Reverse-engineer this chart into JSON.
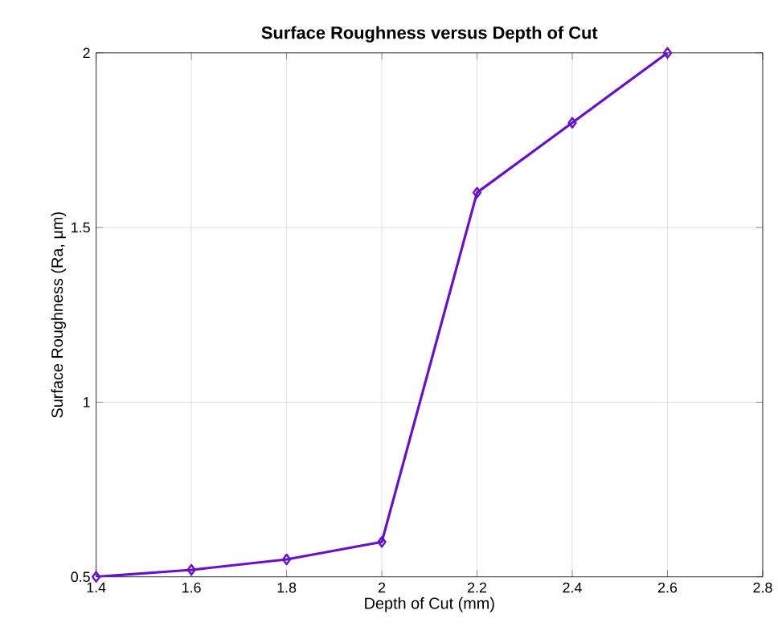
{
  "chart_data": {
    "type": "line",
    "title": "Surface Roughness versus Depth of Cut",
    "xlabel": "Depth of Cut (mm)",
    "ylabel": "Surface Roughness (Ra, μm)",
    "x": [
      1.4,
      1.6,
      1.8,
      2.0,
      2.2,
      2.4,
      2.6
    ],
    "series": [
      {
        "color": "#6a0fd0",
        "values": [
          0.5,
          0.52,
          0.55,
          0.6,
          1.6,
          1.8,
          2.0
        ]
      }
    ],
    "xlim": [
      1.4,
      2.8
    ],
    "ylim": [
      0.5,
      2
    ],
    "xticks": [
      1.4,
      1.6,
      1.8,
      2,
      2.2,
      2.4,
      2.6,
      2.8
    ],
    "yticks": [
      0.5,
      1,
      1.5,
      2
    ],
    "grid": true,
    "marker": "diamond",
    "line_style": "solid"
  }
}
